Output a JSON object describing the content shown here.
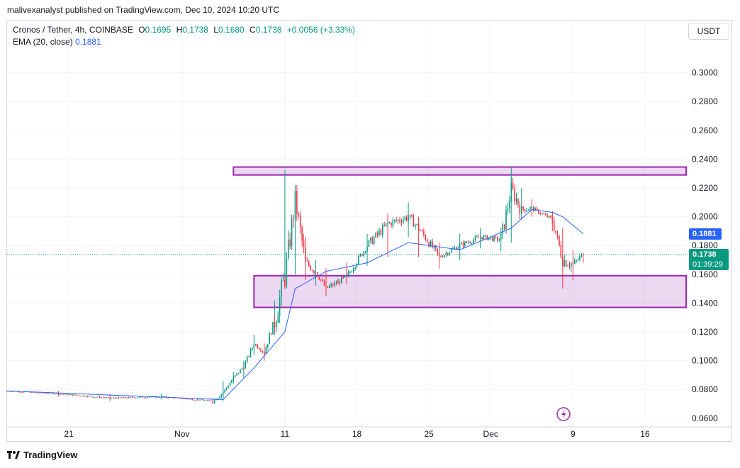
{
  "header": {
    "published": "malivexanalyst published on TradingView.com, Dec 10, 2024 10:20 UTC"
  },
  "legend": {
    "symbol": "Cronos / Tether, 4h, COINBASE",
    "o_label": "O",
    "o": "0.1695",
    "h_label": "H",
    "h": "0.1738",
    "l_label": "L",
    "l": "0.1680",
    "c_label": "C",
    "c": "0.1738",
    "change": "+0.0056 (+3.33%)",
    "ema_label": "EMA (20, close)",
    "ema_value": "0.1881"
  },
  "currency_button": "USDT",
  "price_labels": {
    "ema": "0.1881",
    "last": "0.1738",
    "countdown": "01:39:29",
    "ema_color": "#2962ff",
    "last_color": "#089981"
  },
  "footer": {
    "brand": "TradingView"
  },
  "chart_data": {
    "type": "line",
    "title": "Cronos / Tether, 4h, COINBASE",
    "x_tick_labels": [
      "21",
      "Nov",
      "11",
      "18",
      "25",
      "Dec",
      "9",
      "16"
    ],
    "y_tick_labels": [
      "0.3000",
      "0.2800",
      "0.2600",
      "0.2400",
      "0.2200",
      "0.2000",
      "0.1800",
      "0.1600",
      "0.1400",
      "0.1200",
      "0.1000",
      "0.0800",
      "0.0600"
    ],
    "ylim": [
      0.055,
      0.318
    ],
    "grid": true,
    "series": [
      {
        "kind": "candlestick-approx",
        "x": [
          "2024-10-15",
          "2024-10-20",
          "2024-10-25",
          "2024-10-30",
          "2024-11-04",
          "2024-11-05",
          "2024-11-06",
          "2024-11-07",
          "2024-11-08",
          "2024-11-09",
          "2024-11-10",
          "2024-11-11",
          "2024-11-12",
          "2024-11-13",
          "2024-11-14",
          "2024-11-15",
          "2024-11-17",
          "2024-11-19",
          "2024-11-21",
          "2024-11-23",
          "2024-11-24",
          "2024-11-26",
          "2024-11-28",
          "2024-11-30",
          "2024-12-02",
          "2024-12-03",
          "2024-12-04",
          "2024-12-05",
          "2024-12-07",
          "2024-12-08",
          "2024-12-09",
          "2024-12-10"
        ],
        "values": [
          0.079,
          0.077,
          0.074,
          0.075,
          0.072,
          0.078,
          0.088,
          0.096,
          0.112,
          0.106,
          0.128,
          0.158,
          0.212,
          0.168,
          0.162,
          0.15,
          0.158,
          0.18,
          0.195,
          0.2,
          0.192,
          0.172,
          0.18,
          0.186,
          0.184,
          0.219,
          0.205,
          0.206,
          0.198,
          0.17,
          0.167,
          0.1738
        ],
        "highs": [
          0.081,
          0.079,
          0.077,
          0.077,
          0.074,
          0.086,
          0.092,
          0.1,
          0.118,
          0.112,
          0.142,
          0.232,
          0.222,
          0.186,
          0.17,
          0.164,
          0.168,
          0.188,
          0.202,
          0.21,
          0.2,
          0.182,
          0.188,
          0.192,
          0.192,
          0.234,
          0.22,
          0.212,
          0.204,
          0.192,
          0.177,
          0.175
        ],
        "lows": [
          0.077,
          0.075,
          0.072,
          0.073,
          0.07,
          0.072,
          0.084,
          0.088,
          0.104,
          0.1,
          0.118,
          0.15,
          0.16,
          0.156,
          0.152,
          0.145,
          0.153,
          0.166,
          0.172,
          0.186,
          0.172,
          0.164,
          0.17,
          0.178,
          0.176,
          0.182,
          0.198,
          0.2,
          0.19,
          0.15,
          0.156,
          0.168
        ]
      },
      {
        "name": "EMA (20, close)",
        "x": [
          "2024-10-15",
          "2024-11-05",
          "2024-11-08",
          "2024-11-11",
          "2024-11-12",
          "2024-11-15",
          "2024-11-19",
          "2024-11-23",
          "2024-11-28",
          "2024-12-03",
          "2024-12-05",
          "2024-12-07",
          "2024-12-08",
          "2024-12-10"
        ],
        "values": [
          0.079,
          0.073,
          0.095,
          0.12,
          0.15,
          0.162,
          0.168,
          0.182,
          0.177,
          0.192,
          0.205,
          0.203,
          0.2,
          0.1881
        ]
      }
    ],
    "zones": [
      {
        "from": 0.229,
        "to": 0.2345,
        "x_start": "2024-11-06",
        "color": "#9c27b0"
      },
      {
        "from": 0.137,
        "to": 0.159,
        "x_start": "2024-11-08",
        "color": "#9c27b0"
      }
    ]
  }
}
